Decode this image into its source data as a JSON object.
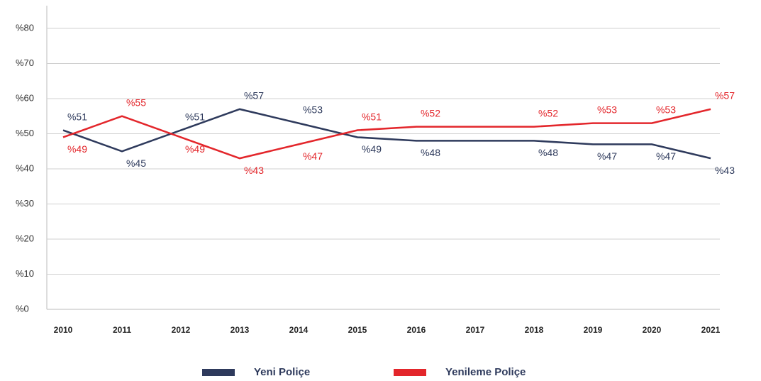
{
  "chart_data": {
    "type": "line",
    "categories": [
      "2010",
      "2011",
      "2012",
      "2013",
      "2014",
      "2015",
      "2016",
      "2017",
      "2018",
      "2019",
      "2020",
      "2021"
    ],
    "series": [
      {
        "name": "Yeni Poliçe",
        "color": "#2e3a5c",
        "values": [
          51,
          45,
          51,
          57,
          53,
          49,
          48,
          48,
          48,
          47,
          47,
          43
        ],
        "value_labels": [
          "%51",
          "%45",
          "%51",
          "%57",
          "%53",
          "%49",
          "%48",
          null,
          "%48",
          "%47",
          "%47",
          "%43"
        ]
      },
      {
        "name": "Yenileme Poliçe",
        "color": "#e3262b",
        "values": [
          49,
          55,
          49,
          43,
          47,
          51,
          52,
          52,
          52,
          53,
          53,
          57
        ],
        "value_labels": [
          "%49",
          "%55",
          "%49",
          "%43",
          "%47",
          "%51",
          "%52",
          null,
          "%52",
          "%53",
          "%53",
          "%57"
        ]
      }
    ],
    "ylim": [
      0,
      80
    ],
    "yticks": [
      {
        "value": 0,
        "label": "%0"
      },
      {
        "value": 10,
        "label": "%10"
      },
      {
        "value": 20,
        "label": "%20"
      },
      {
        "value": 30,
        "label": "%30"
      },
      {
        "value": 40,
        "label": "%40"
      },
      {
        "value": 50,
        "label": "%50"
      },
      {
        "value": 60,
        "label": "%60"
      },
      {
        "value": 70,
        "label": "%70"
      },
      {
        "value": 80,
        "label": "%80"
      }
    ],
    "grid": true
  }
}
